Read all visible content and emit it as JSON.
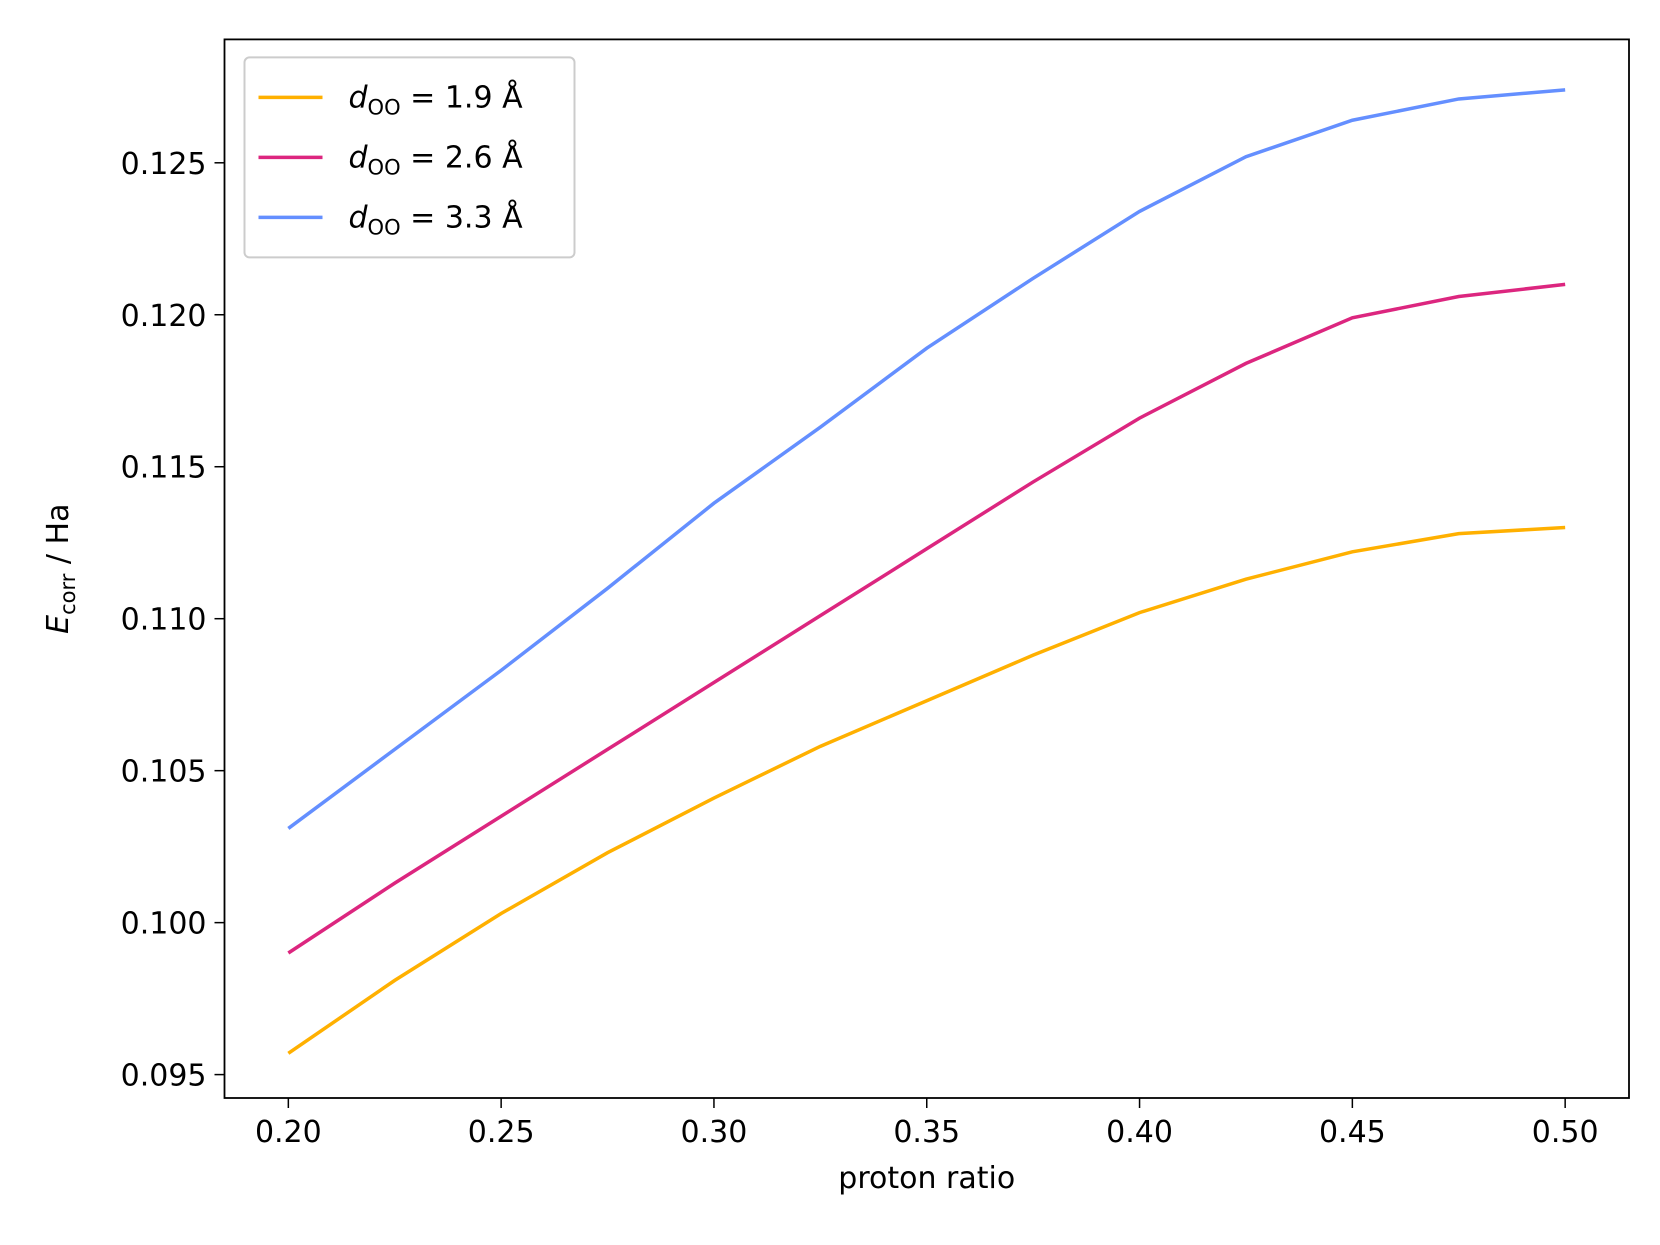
{
  "chart_data": {
    "type": "line",
    "x_label": "proton ratio",
    "y_label": "Ecorr / Ha",
    "x": [
      0.2,
      0.225,
      0.25,
      0.275,
      0.3,
      0.325,
      0.35,
      0.375,
      0.4,
      0.425,
      0.45,
      0.475,
      0.5
    ],
    "series": [
      {
        "name": "dOO = 1.9 Å",
        "color": "#ffb000",
        "values": [
          0.0957,
          0.0981,
          0.1003,
          0.1023,
          0.1041,
          0.1058,
          0.1073,
          0.1088,
          0.1102,
          0.1113,
          0.1122,
          0.1128,
          0.113
        ]
      },
      {
        "name": "dOO = 2.6 Å",
        "color": "#dc267f",
        "values": [
          0.099,
          0.1013,
          0.1035,
          0.1057,
          0.1079,
          0.1101,
          0.1123,
          0.1145,
          0.1166,
          0.1184,
          0.1199,
          0.1206,
          0.121
        ]
      },
      {
        "name": "dOO = 3.3 Å",
        "color": "#648fff",
        "values": [
          0.1031,
          0.1057,
          0.1083,
          0.111,
          0.1138,
          0.1163,
          0.1189,
          0.1212,
          0.1234,
          0.1252,
          0.1264,
          0.1271,
          0.1274
        ]
      }
    ],
    "xlim": [
      0.185,
      0.515
    ],
    "ylim": [
      0.09423,
      0.12906
    ],
    "xticks": [
      {
        "value": 0.2,
        "label": "0.20"
      },
      0.25,
      {
        "value": 0.3,
        "label": "0.30"
      },
      0.35,
      {
        "value": 0.4,
        "label": "0.40"
      },
      0.45,
      {
        "value": 0.5,
        "label": "0.50"
      }
    ],
    "yticks": [
      0.095,
      {
        "value": 0.1,
        "label": "0.100"
      },
      0.105,
      {
        "value": 0.11,
        "label": "0.110"
      },
      0.115,
      {
        "value": 0.12,
        "label": "0.120"
      },
      0.125
    ],
    "legend": "upper left",
    "grid": false
  }
}
